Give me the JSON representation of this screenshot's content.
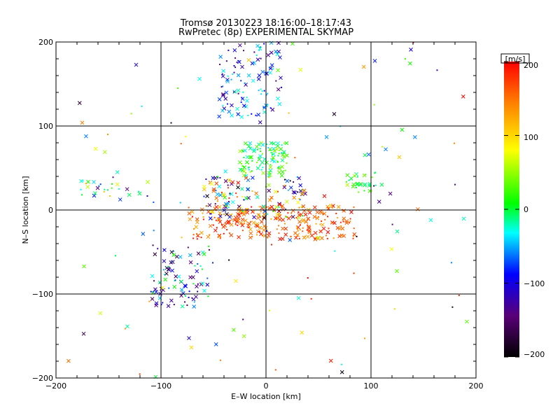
{
  "chart_data": {
    "type": "scatter",
    "title": "Tromsø 20130223 18:16:00–18:17:43",
    "subtitle": "RwPretec (8p) EXPERIMENTAL SKYMAP",
    "xlabel": "E–W location [km]",
    "ylabel": "N–S location [km]",
    "xlim": [
      -200,
      200
    ],
    "ylim": [
      -200,
      200
    ],
    "xticks": [
      "−200",
      "−100",
      "0",
      "100",
      "200"
    ],
    "yticks": [
      "−200",
      "−100",
      "0",
      "100",
      "200"
    ],
    "grid_values": [
      -100,
      0,
      100
    ],
    "colorbar": {
      "label": "[m/s]",
      "range": [
        -200,
        200
      ],
      "ticks": [
        "200",
        "100",
        "0",
        "−100",
        "−200"
      ],
      "colormap": [
        "#000000",
        "#5a0078",
        "#0000ff",
        "#00ffff",
        "#00ff00",
        "#ffff00",
        "#ff8000",
        "#ff0000"
      ]
    },
    "point_groups": [
      {
        "name": "equatorial-red-band",
        "x_range": [
          -75,
          85
        ],
        "y_range": [
          -35,
          5
        ],
        "v_range": [
          120,
          200
        ],
        "count": 260
      },
      {
        "name": "core-green-cluster",
        "x_range": [
          -25,
          20
        ],
        "y_range": [
          40,
          80
        ],
        "v_range": [
          -40,
          60
        ],
        "count": 110
      },
      {
        "name": "center-mixed",
        "x_range": [
          -60,
          40
        ],
        "y_range": [
          -10,
          40
        ],
        "v_range": [
          -200,
          200
        ],
        "count": 140
      },
      {
        "name": "north-column",
        "x_range": [
          -45,
          15
        ],
        "y_range": [
          110,
          200
        ],
        "v_range": [
          -150,
          -20
        ],
        "count": 110
      },
      {
        "name": "southwest-arm",
        "x_range": [
          -110,
          -50
        ],
        "y_range": [
          -115,
          -40
        ],
        "v_range": [
          -180,
          20
        ],
        "count": 95
      },
      {
        "name": "east-arm",
        "x_range": [
          75,
          105
        ],
        "y_range": [
          20,
          45
        ],
        "v_range": [
          -20,
          60
        ],
        "count": 30
      },
      {
        "name": "west-line",
        "x_range": [
          -178,
          -110
        ],
        "y_range": [
          15,
          35
        ],
        "v_range": [
          -150,
          120
        ],
        "count": 26
      },
      {
        "name": "scattered-field",
        "x_range": [
          -200,
          200
        ],
        "y_range": [
          -200,
          200
        ],
        "v_range": [
          -200,
          200
        ],
        "count": 120
      }
    ]
  }
}
